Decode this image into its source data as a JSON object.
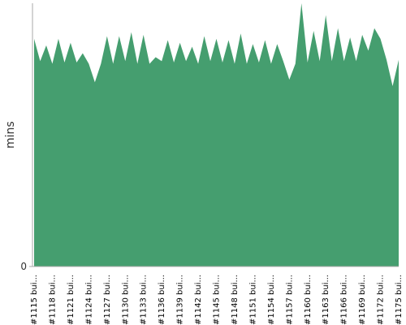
{
  "chart_data": {
    "type": "area",
    "y_label": "mins",
    "color": "#459e6f",
    "ylim": [
      0,
      20
    ],
    "yticks": [
      0
    ],
    "categories": [
      "#1115 bui...",
      null,
      null,
      "#1118 bui...",
      null,
      null,
      "#1121 bui...",
      null,
      null,
      "#1124 bui...",
      null,
      null,
      "#1127 bui...",
      null,
      null,
      "#1130 bui...",
      null,
      null,
      "#1133 bui...",
      null,
      null,
      "#1136 bui...",
      null,
      null,
      "#1139 bui...",
      null,
      null,
      "#1142 bui...",
      null,
      null,
      "#1145 bui...",
      null,
      null,
      "#1148 bui...",
      null,
      null,
      "#1151 bui...",
      null,
      null,
      "#1154 bui...",
      null,
      null,
      "#1157 bui...",
      null,
      null,
      "#1160 bui...",
      null,
      null,
      "#1163 bui...",
      null,
      null,
      "#1166 bui...",
      null,
      null,
      "#1169 bui...",
      null,
      null,
      "#1172 bui...",
      null,
      null,
      "#1175 bui..."
    ],
    "values": [
      17.3,
      15.6,
      16.8,
      15.4,
      17.3,
      15.5,
      17.0,
      15.5,
      16.2,
      15.4,
      14.0,
      15.4,
      17.5,
      15.4,
      17.5,
      15.6,
      17.8,
      15.4,
      17.6,
      15.4,
      15.9,
      15.6,
      17.2,
      15.5,
      17.0,
      15.6,
      16.7,
      15.4,
      17.5,
      15.6,
      17.3,
      15.5,
      17.2,
      15.4,
      17.7,
      15.4,
      16.9,
      15.5,
      17.2,
      15.4,
      16.9,
      15.6,
      14.2,
      15.4,
      20.0,
      15.5,
      17.9,
      15.6,
      19.1,
      15.6,
      18.1,
      15.6,
      17.4,
      15.6,
      17.6,
      16.4,
      18.1,
      17.3,
      15.7,
      13.7,
      15.7
    ]
  }
}
